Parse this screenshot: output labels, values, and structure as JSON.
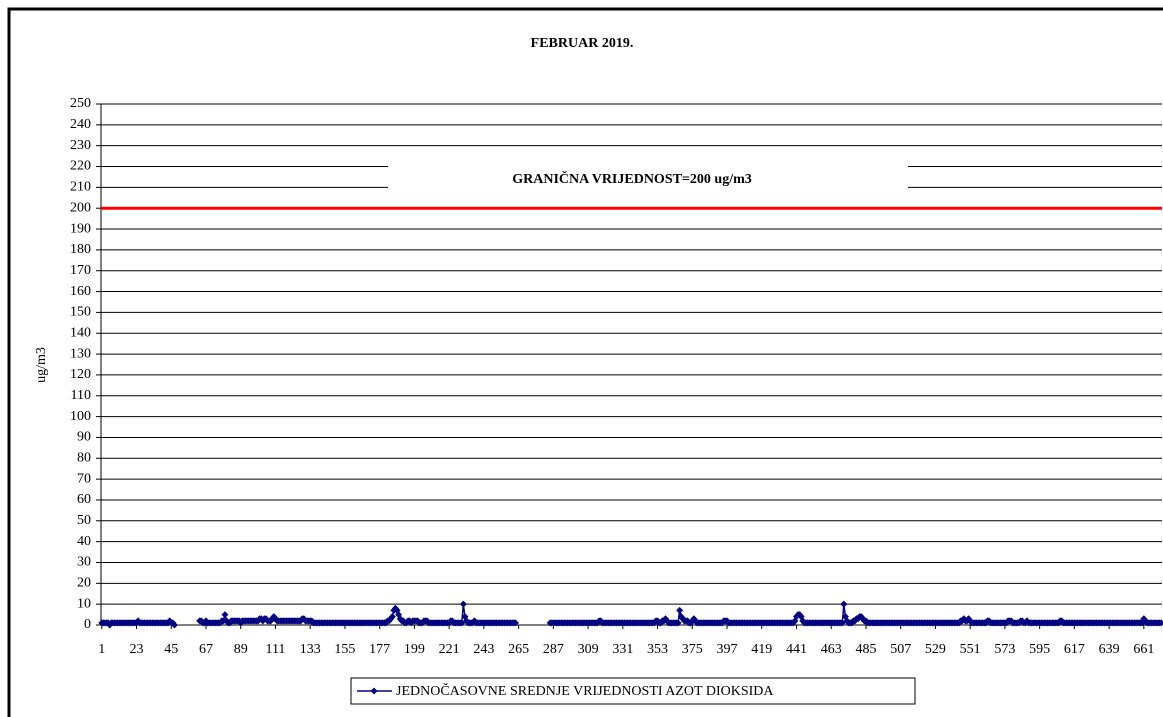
{
  "chart_data": {
    "type": "line",
    "title": "FEBRUAR 2019.",
    "ylabel": "ug/m3",
    "ylim": [
      0,
      250
    ],
    "yticks": [
      0,
      10,
      20,
      30,
      40,
      50,
      60,
      70,
      80,
      90,
      100,
      110,
      120,
      130,
      140,
      150,
      160,
      170,
      180,
      190,
      200,
      210,
      220,
      230,
      240,
      250
    ],
    "xlim": [
      0.5,
      672.5
    ],
    "xticks": [
      1,
      23,
      45,
      67,
      89,
      111,
      133,
      155,
      177,
      199,
      221,
      243,
      265,
      287,
      309,
      331,
      353,
      375,
      397,
      419,
      441,
      463,
      485,
      507,
      529,
      551,
      573,
      595,
      617,
      639,
      661
    ],
    "grid": true,
    "legend": "bottom",
    "threshold": {
      "value": 200,
      "label": "GRANIČNA VRIJEDNOST=200 ug/m3",
      "color": "#ff0000"
    },
    "x": [
      1,
      2,
      3,
      4,
      5,
      6,
      7,
      8,
      9,
      10,
      11,
      12,
      13,
      14,
      15,
      16,
      17,
      18,
      19,
      20,
      21,
      22,
      23,
      24,
      25,
      26,
      27,
      28,
      29,
      30,
      31,
      32,
      33,
      34,
      35,
      36,
      37,
      38,
      39,
      40,
      41,
      42,
      43,
      44,
      45,
      46,
      47,
      48,
      49,
      50,
      51,
      52,
      53,
      54,
      55,
      56,
      57,
      58,
      59,
      60,
      61,
      62,
      63,
      64,
      65,
      66,
      67,
      68,
      69,
      70,
      71,
      72,
      73,
      74,
      75,
      76,
      77,
      78,
      79,
      80,
      81,
      82,
      83,
      84,
      85,
      86,
      87,
      88,
      89,
      90,
      91,
      92,
      93,
      94,
      95,
      96,
      97,
      98,
      99,
      100,
      101,
      102,
      103,
      104,
      105,
      106,
      107,
      108,
      109,
      110,
      111,
      112,
      113,
      114,
      115,
      116,
      117,
      118,
      119,
      120,
      121,
      122,
      123,
      124,
      125,
      126,
      127,
      128,
      129,
      130,
      131,
      132,
      133,
      134,
      135,
      136,
      137,
      138,
      139,
      140,
      141,
      142,
      143,
      144,
      145,
      146,
      147,
      148,
      149,
      150,
      151,
      152,
      153,
      154,
      155,
      156,
      157,
      158,
      159,
      160,
      161,
      162,
      163,
      164,
      165,
      166,
      167,
      168,
      169,
      170,
      171,
      172,
      173,
      174,
      175,
      176,
      177,
      178,
      179,
      180,
      181,
      182,
      183,
      184,
      185,
      186,
      187,
      188,
      189,
      190,
      191,
      192,
      193,
      194,
      195,
      196,
      197,
      198,
      199,
      200,
      201,
      202,
      203,
      204,
      205,
      206,
      207,
      208,
      209,
      210,
      211,
      212,
      213,
      214,
      215,
      216,
      217,
      218,
      219,
      220,
      221,
      222,
      223,
      224,
      225,
      226,
      227,
      228,
      229,
      230,
      231,
      232,
      233,
      234,
      235,
      236,
      237,
      238,
      239,
      240,
      241,
      242,
      243,
      244,
      245,
      246,
      247,
      248,
      249,
      250,
      251,
      252,
      253,
      254,
      255,
      256,
      257,
      258,
      259,
      260,
      261,
      262,
      263,
      264,
      265,
      266,
      267,
      268,
      269,
      270,
      271,
      272,
      273,
      274,
      275,
      276,
      277,
      278,
      279,
      280,
      281,
      282,
      283,
      284,
      285,
      286,
      287,
      288,
      289,
      290,
      291,
      292,
      293,
      294,
      295,
      296,
      297,
      298,
      299,
      300,
      301,
      302,
      303,
      304,
      305,
      306,
      307,
      308,
      309,
      310,
      311,
      312,
      313,
      314,
      315,
      316,
      317,
      318,
      319,
      320,
      321,
      322,
      323,
      324,
      325,
      326,
      327,
      328,
      329,
      330,
      331,
      332,
      333,
      334,
      335,
      336,
      337,
      338,
      339,
      340,
      341,
      342,
      343,
      344,
      345,
      346,
      347,
      348,
      349,
      350,
      351,
      352,
      353,
      354,
      355,
      356,
      357,
      358,
      359,
      360,
      361,
      362,
      363,
      364,
      365,
      366,
      367,
      368,
      369,
      370,
      371,
      372,
      373,
      374,
      375,
      376,
      377,
      378,
      379,
      380,
      381,
      382,
      383,
      384,
      385,
      386,
      387,
      388,
      389,
      390,
      391,
      392,
      393,
      394,
      395,
      396,
      397,
      398,
      399,
      400,
      401,
      402,
      403,
      404,
      405,
      406,
      407,
      408,
      409,
      410,
      411,
      412,
      413,
      414,
      415,
      416,
      417,
      418,
      419,
      420,
      421,
      422,
      423,
      424,
      425,
      426,
      427,
      428,
      429,
      430,
      431,
      432,
      433,
      434,
      435,
      436,
      437,
      438,
      439,
      440,
      441,
      442,
      443,
      444,
      445,
      446,
      447,
      448,
      449,
      450,
      451,
      452,
      453,
      454,
      455,
      456,
      457,
      458,
      459,
      460,
      461,
      462,
      463,
      464,
      465,
      466,
      467,
      468,
      469,
      470,
      471,
      472,
      473,
      474,
      475,
      476,
      477,
      478,
      479,
      480,
      481,
      482,
      483,
      484,
      485,
      486,
      487,
      488,
      489,
      490,
      491,
      492,
      493,
      494,
      495,
      496,
      497,
      498,
      499,
      500,
      501,
      502,
      503,
      504,
      505,
      506,
      507,
      508,
      509,
      510,
      511,
      512,
      513,
      514,
      515,
      516,
      517,
      518,
      519,
      520,
      521,
      522,
      523,
      524,
      525,
      526,
      527,
      528,
      529,
      530,
      531,
      532,
      533,
      534,
      535,
      536,
      537,
      538,
      539,
      540,
      541,
      542,
      543,
      544,
      545,
      546,
      547,
      548,
      549,
      550,
      551,
      552,
      553,
      554,
      555,
      556,
      557,
      558,
      559,
      560,
      561,
      562,
      563,
      564,
      565,
      566,
      567,
      568,
      569,
      570,
      571,
      572,
      573,
      574,
      575,
      576,
      577,
      578,
      579,
      580,
      581,
      582,
      583,
      584,
      585,
      586,
      587,
      588,
      589,
      590,
      591,
      592,
      593,
      594,
      595,
      596,
      597,
      598,
      599,
      600,
      601,
      602,
      603,
      604,
      605,
      606,
      607,
      608,
      609,
      610,
      611,
      612,
      613,
      614,
      615,
      616,
      617,
      618,
      619,
      620,
      621,
      622,
      623,
      624,
      625,
      626,
      627,
      628,
      629,
      630,
      631,
      632,
      633,
      634,
      635,
      636,
      637,
      638,
      639,
      640,
      641,
      642,
      643,
      644,
      645,
      646,
      647,
      648,
      649,
      650,
      651,
      652,
      653,
      654,
      655,
      656,
      657,
      658,
      659,
      660,
      661,
      662,
      663,
      664,
      665,
      666,
      667,
      668,
      669,
      670,
      671,
      672
    ],
    "series": [
      {
        "name": "JEDNOČASOVNE SREDNJE VRIJEDNOSTI AZOT DIOKSIDA",
        "color": "#000080",
        "values": [
          1,
          1,
          1,
          1,
          1,
          0,
          1,
          1,
          1,
          1,
          1,
          1,
          1,
          1,
          1,
          1,
          1,
          1,
          1,
          1,
          1,
          1,
          1,
          2,
          1,
          1,
          1,
          1,
          1,
          1,
          1,
          1,
          1,
          1,
          1,
          1,
          1,
          1,
          1,
          1,
          1,
          1,
          1,
          2,
          1,
          1,
          0,
          null,
          null,
          null,
          null,
          null,
          null,
          null,
          null,
          null,
          null,
          null,
          null,
          null,
          null,
          null,
          2,
          2,
          1,
          1,
          2,
          1,
          1,
          1,
          1,
          1,
          1,
          1,
          1,
          1,
          2,
          2,
          5,
          2,
          1,
          1,
          2,
          2,
          2,
          2,
          2,
          2,
          1,
          2,
          2,
          2,
          2,
          2,
          2,
          2,
          2,
          2,
          2,
          2,
          3,
          3,
          2,
          3,
          3,
          2,
          2,
          2,
          3,
          4,
          3,
          2,
          2,
          2,
          2,
          2,
          2,
          2,
          2,
          2,
          2,
          2,
          2,
          2,
          2,
          2,
          2,
          3,
          3,
          2,
          2,
          2,
          2,
          2,
          1,
          1,
          1,
          1,
          1,
          1,
          1,
          1,
          1,
          1,
          1,
          1,
          1,
          1,
          1,
          1,
          1,
          1,
          1,
          1,
          1,
          1,
          1,
          1,
          1,
          1,
          1,
          1,
          1,
          1,
          1,
          1,
          1,
          1,
          1,
          1,
          1,
          1,
          1,
          1,
          1,
          1,
          1,
          1,
          1,
          1,
          1,
          2,
          2,
          3,
          4,
          7,
          8,
          7,
          5,
          3,
          2,
          2,
          1,
          1,
          2,
          2,
          1,
          2,
          2,
          2,
          2,
          1,
          1,
          1,
          2,
          2,
          2,
          1,
          1,
          1,
          1,
          1,
          1,
          1,
          1,
          1,
          1,
          1,
          1,
          1,
          1,
          2,
          2,
          1,
          1,
          1,
          1,
          1,
          1,
          10,
          4,
          2,
          1,
          1,
          1,
          1,
          2,
          1,
          1,
          1,
          1,
          1,
          1,
          1,
          1,
          1,
          1,
          1,
          1,
          1,
          1,
          1,
          1,
          1,
          1,
          1,
          1,
          1,
          1,
          1,
          1,
          1,
          1,
          null,
          null,
          null,
          null,
          null,
          null,
          null,
          null,
          null,
          null,
          null,
          null,
          null,
          null,
          null,
          null,
          null,
          null,
          null,
          null,
          null,
          1,
          1,
          1,
          1,
          1,
          1,
          1,
          1,
          1,
          1,
          1,
          1,
          1,
          1,
          1,
          1,
          1,
          1,
          1,
          1,
          1,
          1,
          1,
          1,
          1,
          1,
          1,
          1,
          1,
          1,
          1,
          2,
          2,
          1,
          1,
          1,
          1,
          1,
          1,
          1,
          1,
          1,
          1,
          1,
          1,
          1,
          1,
          1,
          1,
          1,
          1,
          1,
          1,
          1,
          1,
          1,
          1,
          1,
          1,
          1,
          1,
          1,
          1,
          1,
          1,
          1,
          1,
          2,
          2,
          1,
          1,
          2,
          2,
          3,
          2,
          1,
          1,
          1,
          1,
          1,
          1,
          1,
          7,
          4,
          3,
          2,
          2,
          2,
          1,
          1,
          2,
          3,
          2,
          1,
          1,
          1,
          1,
          1,
          1,
          1,
          1,
          1,
          1,
          1,
          1,
          1,
          1,
          1,
          1,
          1,
          2,
          2,
          2,
          1,
          1,
          1,
          1,
          1,
          1,
          1,
          1,
          1,
          1,
          1,
          1,
          1,
          1,
          1,
          1,
          1,
          1,
          1,
          1,
          1,
          1,
          1,
          1,
          1,
          1,
          1,
          1,
          1,
          1,
          1,
          1,
          1,
          1,
          1,
          1,
          1,
          1,
          1,
          1,
          1,
          1,
          2,
          4,
          5,
          5,
          4,
          2,
          1,
          1,
          1,
          1,
          1,
          1,
          1,
          1,
          1,
          1,
          1,
          1,
          1,
          1,
          1,
          1,
          1,
          1,
          1,
          1,
          1,
          1,
          1,
          1,
          1,
          10,
          4,
          2,
          1,
          1,
          1,
          2,
          2,
          3,
          3,
          4,
          4,
          3,
          2,
          2,
          1,
          1,
          1,
          1,
          1,
          1,
          1,
          1,
          1,
          1,
          1,
          1,
          1,
          1,
          1,
          1,
          1,
          1,
          1,
          1,
          1,
          1,
          1,
          1,
          1,
          1,
          1,
          1,
          1,
          1,
          1,
          1,
          1,
          1,
          1,
          1,
          1,
          1,
          1,
          1,
          1,
          1,
          1,
          1,
          1,
          1,
          1,
          1,
          1,
          1,
          1,
          1,
          1,
          1,
          1,
          1,
          1,
          1,
          1,
          2,
          2,
          3,
          2,
          2,
          3,
          2,
          1,
          1,
          1,
          1,
          1,
          1,
          1,
          1,
          1,
          1,
          2,
          2,
          1,
          1,
          1,
          1,
          1,
          1,
          1,
          1,
          1,
          1,
          1,
          2,
          2,
          2,
          1,
          1,
          1,
          1,
          1,
          2,
          2,
          1,
          1,
          2,
          1,
          1,
          1,
          1,
          1,
          1,
          1,
          1,
          1,
          1,
          1,
          1,
          1,
          1,
          1,
          1,
          1,
          1,
          1,
          1,
          2,
          2,
          1,
          1,
          1,
          1,
          1,
          1,
          1,
          1,
          1,
          1,
          1,
          1,
          1,
          1,
          1,
          1,
          1,
          1,
          1,
          1,
          1,
          1,
          1,
          1,
          1,
          1,
          1,
          1,
          1,
          1,
          1,
          1,
          1,
          1,
          1,
          1,
          1,
          1,
          1,
          1,
          1,
          1,
          1,
          1,
          1,
          1,
          1,
          1,
          1,
          1,
          1,
          3,
          2,
          1,
          1,
          1,
          1,
          1,
          1,
          1,
          1,
          1,
          1
        ]
      }
    ]
  }
}
